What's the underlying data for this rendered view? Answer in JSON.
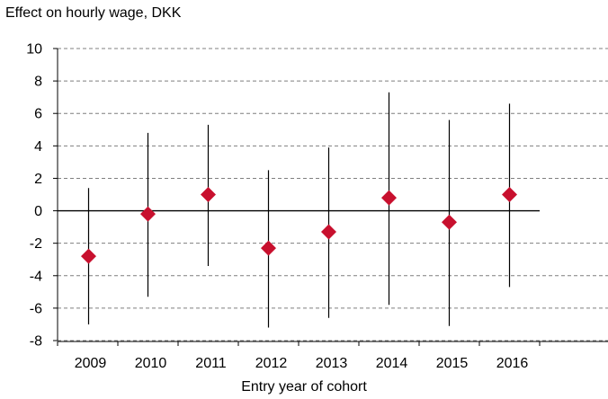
{
  "chart_data": {
    "type": "scatter",
    "title": "",
    "ylabel": "Effect on hourly  wage, DKK",
    "xlabel": "Entry year of cohort",
    "categories": [
      "2009",
      "2010",
      "2011",
      "2012",
      "2013",
      "2014",
      "2015",
      "2016"
    ],
    "series": [
      {
        "values": [
          -2.8,
          -0.2,
          1.0,
          -2.3,
          -1.3,
          0.8,
          -0.7,
          1.0
        ],
        "ci_low": [
          -7.0,
          -5.3,
          -3.4,
          -7.2,
          -6.6,
          -5.8,
          -7.1,
          -4.7
        ],
        "ci_high": [
          1.4,
          4.8,
          5.3,
          2.5,
          3.9,
          7.3,
          5.6,
          6.6
        ],
        "marker": "diamond",
        "color": "#c8102e"
      }
    ],
    "ylim": [
      -8,
      10
    ],
    "yticks": [
      "10",
      "8",
      "6",
      "4",
      "2",
      "0",
      "-2",
      "-4",
      "-6",
      "-8"
    ],
    "grid": "horizontal-dashed",
    "legend": "none"
  }
}
